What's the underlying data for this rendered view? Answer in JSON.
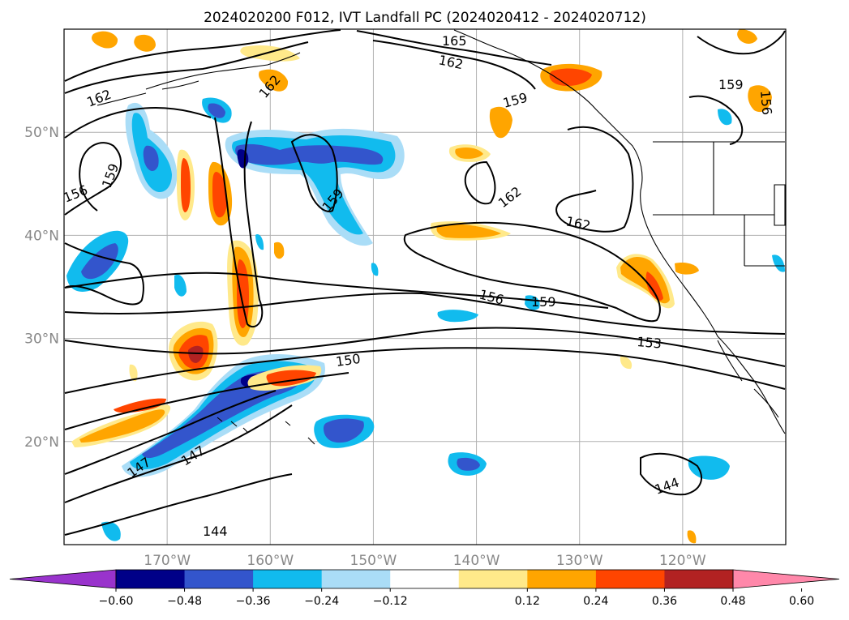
{
  "title": "2024020200 F012, IVT Landfall PC (2024020412 - 2024020712)",
  "map": {
    "lon_range": [
      -180,
      -110
    ],
    "lat_range": [
      10,
      60
    ],
    "lat_ticks": [
      {
        "value": 20,
        "label": "20°N"
      },
      {
        "value": 30,
        "label": "30°N"
      },
      {
        "value": 40,
        "label": "40°N"
      },
      {
        "value": 50,
        "label": "50°N"
      }
    ],
    "lon_ticks": [
      {
        "value": -170,
        "label": "170°W"
      },
      {
        "value": -160,
        "label": "160°W"
      },
      {
        "value": -150,
        "label": "150°W"
      },
      {
        "value": -140,
        "label": "140°W"
      },
      {
        "value": -130,
        "label": "130°W"
      },
      {
        "value": -120,
        "label": "120°W"
      }
    ],
    "grid": true,
    "contour_labels": [
      "165",
      "162",
      "162",
      "162",
      "162",
      "159",
      "159",
      "159",
      "159",
      "156",
      "156",
      "156",
      "153",
      "150",
      "147",
      "147",
      "144",
      "144",
      "162"
    ]
  },
  "colorbar": {
    "ticks": [
      "−0.60",
      "−0.48",
      "−0.36",
      "−0.24",
      "−0.12",
      "0.12",
      "0.24",
      "0.36",
      "0.48",
      "0.60"
    ],
    "colors": {
      "below_min": "#9933cc",
      "b1": "#000088",
      "b2": "#3355cc",
      "b3": "#11bbee",
      "b4": "#aaddf7",
      "neutral": "#ffffff",
      "p1": "#ffe98a",
      "p2": "#ffa500",
      "p3": "#ff4500",
      "p4": "#b22222",
      "above_max": "#ff88aa"
    }
  }
}
